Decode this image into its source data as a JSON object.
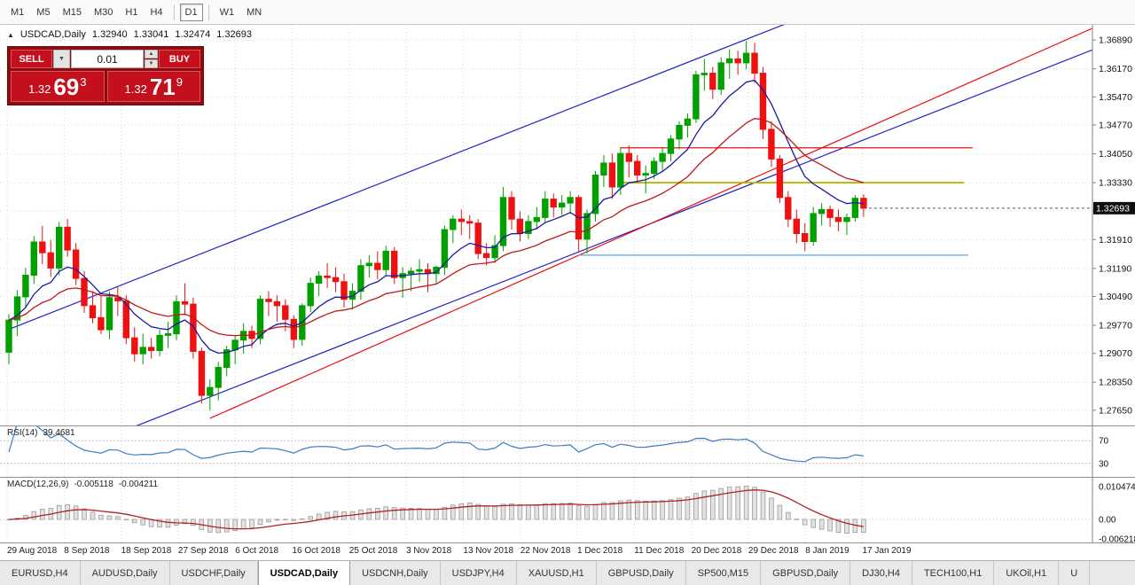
{
  "toolbar": {
    "timeframes": [
      "M1",
      "M5",
      "M15",
      "M30",
      "H1",
      "H4",
      "D1",
      "W1",
      "MN"
    ],
    "active": "D1"
  },
  "chart_header": {
    "symbol": "USDCAD,Daily",
    "open": "1.32940",
    "high": "1.33041",
    "low": "1.32474",
    "close": "1.32693"
  },
  "trade_panel": {
    "sell_label": "SELL",
    "buy_label": "BUY",
    "volume": "0.01",
    "bid": {
      "small": "1.32",
      "big": "69",
      "sup": "3"
    },
    "ask": {
      "small": "1.32",
      "big": "71",
      "sup": "9"
    }
  },
  "price_badge": "1.32693",
  "axes": {
    "price_labels": [
      "1.36890",
      "1.36170",
      "1.35470",
      "1.34770",
      "1.34050",
      "1.33330",
      "1.32630",
      "1.31910",
      "1.31190",
      "1.30490",
      "1.29770",
      "1.29070",
      "1.28350",
      "1.27650"
    ],
    "date_labels": [
      "29 Aug 2018",
      "8 Sep 2018",
      "18 Sep 2018",
      "27 Sep 2018",
      "6 Oct 2018",
      "16 Oct 2018",
      "25 Oct 2018",
      "3 Nov 2018",
      "13 Nov 2018",
      "22 Nov 2018",
      "1 Dec 2018",
      "11 Dec 2018",
      "20 Dec 2018",
      "29 Dec 2018",
      "8 Jan 2019",
      "17 Jan 2019"
    ]
  },
  "rsi": {
    "label": "RSI(14)",
    "value": "39.4681",
    "levels": [
      {
        "value": 70,
        "label": "70"
      },
      {
        "value": 30,
        "label": "30"
      }
    ]
  },
  "macd": {
    "label": "MACD(12,26,9)",
    "value1": "-0.005118",
    "value2": "-0.004211",
    "axis": [
      {
        "value": 0.010474,
        "label": "0.010474"
      },
      {
        "value": 0,
        "label": "0.00"
      },
      {
        "value": -0.006218,
        "label": "-0.006218"
      }
    ]
  },
  "tabs": {
    "items": [
      "EURUSD,H4",
      "AUDUSD,Daily",
      "USDCHF,Daily",
      "USDCAD,Daily",
      "USDCNH,Daily",
      "USDJPY,H4",
      "XAUUSD,H1",
      "GBPUSD,Daily",
      "SP500,M15",
      "GBPUSD,Daily",
      "DJ30,H4",
      "TECH100,H1",
      "UKOil,H1",
      "U"
    ],
    "active_index": 3
  },
  "colors": {
    "up": "#00a000",
    "down": "#ee1111",
    "grid": "#d9d9d9",
    "axis_line": "#808080",
    "panel_sep": "#909090",
    "rsi_line": "#3b7dc4",
    "macd_hist_fill": "#e2e2e2",
    "macd_hist_stroke": "#9a9a9a",
    "macd_signal": "#b22222",
    "badge_bg": "#101010",
    "badge_text": "#ffffff"
  },
  "chart_data": {
    "type": "candlestick",
    "symbol": "USDCAD",
    "timeframe": "Daily",
    "price_axis": {
      "min": 1.2736,
      "max": 1.3718
    },
    "moving_averages": [
      {
        "period": 9,
        "method": "ema",
        "color": "#1a1a9c"
      },
      {
        "period": 21,
        "method": "ema",
        "color": "#c01818"
      }
    ],
    "trendlines": [
      {
        "name": "ascending-channel-upper",
        "i1": 0,
        "p1": 1.2967,
        "i2": 130,
        "p2": 1.4036,
        "color": "#2020cc",
        "w": 1.2
      },
      {
        "name": "ascending-channel-lower",
        "i1": 0,
        "p1": 1.2601,
        "i2": 130,
        "p2": 1.367,
        "color": "#2020cc",
        "w": 1.2
      },
      {
        "name": "ascending-trendline",
        "i1": 24,
        "p1": 1.2745,
        "i2": 129.5,
        "p2": 1.372,
        "color": "#e81010",
        "w": 1.2
      }
    ],
    "hlines": [
      {
        "name": "resistance-line",
        "price": 1.342,
        "i1": 73,
        "i2": 115,
        "color": "#e81010",
        "w": 1.3
      },
      {
        "name": "pivot-line",
        "price": 1.3333,
        "i1": 73,
        "i2": 114,
        "color": "#b6b800",
        "w": 1.8
      },
      {
        "name": "support-line",
        "price": 1.3152,
        "i1": 68,
        "i2": 114.5,
        "color": "#55a8f0",
        "w": 1.3
      }
    ],
    "indicators": {
      "rsi_period": 14,
      "macd_params": [
        12,
        26,
        9
      ]
    },
    "ohlc": [
      [
        1.291,
        1.3005,
        1.288,
        1.299
      ],
      [
        1.299,
        1.3065,
        1.295,
        1.3048
      ],
      [
        1.3048,
        1.312,
        1.302,
        1.3102
      ],
      [
        1.3102,
        1.32,
        1.308,
        1.3185
      ],
      [
        1.3185,
        1.3225,
        1.313,
        1.3158
      ],
      [
        1.3158,
        1.319,
        1.3098,
        1.312
      ],
      [
        1.312,
        1.3235,
        1.3102,
        1.3222
      ],
      [
        1.3222,
        1.3242,
        1.3148,
        1.3165
      ],
      [
        1.3165,
        1.3182,
        1.3078,
        1.3094
      ],
      [
        1.3094,
        1.3112,
        1.3008,
        1.3026
      ],
      [
        1.3026,
        1.3062,
        1.2982,
        1.2996
      ],
      [
        1.2996,
        1.3052,
        1.2955,
        1.2966
      ],
      [
        1.2966,
        1.3062,
        1.2942,
        1.3046
      ],
      [
        1.3046,
        1.3072,
        1.3,
        1.3038
      ],
      [
        1.3038,
        1.3052,
        1.293,
        1.2946
      ],
      [
        1.2946,
        1.2972,
        1.2886,
        1.2906
      ],
      [
        1.2906,
        1.2956,
        1.288,
        1.2922
      ],
      [
        1.2922,
        1.2946,
        1.2894,
        1.2914
      ],
      [
        1.2914,
        1.2966,
        1.29,
        1.2952
      ],
      [
        1.2952,
        1.2986,
        1.292,
        1.2956
      ],
      [
        1.2956,
        1.3052,
        1.294,
        1.3036
      ],
      [
        1.3036,
        1.3082,
        1.3002,
        1.303
      ],
      [
        1.303,
        1.3046,
        1.2894,
        1.2912
      ],
      [
        1.2912,
        1.2922,
        1.2782,
        1.2802
      ],
      [
        1.2802,
        1.2842,
        1.2765,
        1.2822
      ],
      [
        1.2822,
        1.2886,
        1.279,
        1.2872
      ],
      [
        1.2872,
        1.2926,
        1.285,
        1.2916
      ],
      [
        1.2916,
        1.2952,
        1.288,
        1.294
      ],
      [
        1.294,
        1.2982,
        1.2906,
        1.2962
      ],
      [
        1.2962,
        1.2976,
        1.292,
        1.2944
      ],
      [
        1.2944,
        1.3052,
        1.293,
        1.3042
      ],
      [
        1.3042,
        1.3062,
        1.3,
        1.3036
      ],
      [
        1.3036,
        1.3052,
        1.2986,
        1.3026
      ],
      [
        1.3026,
        1.3042,
        1.2962,
        1.2992
      ],
      [
        1.2992,
        1.3002,
        1.292,
        1.2942
      ],
      [
        1.2942,
        1.3032,
        1.2926,
        1.3026
      ],
      [
        1.3026,
        1.3096,
        1.301,
        1.3082
      ],
      [
        1.3082,
        1.3112,
        1.305,
        1.31
      ],
      [
        1.31,
        1.3132,
        1.307,
        1.3096
      ],
      [
        1.3096,
        1.3122,
        1.306,
        1.3086
      ],
      [
        1.3086,
        1.3106,
        1.3022,
        1.3042
      ],
      [
        1.3042,
        1.3082,
        1.3016,
        1.3062
      ],
      [
        1.3062,
        1.3142,
        1.304,
        1.3126
      ],
      [
        1.3126,
        1.3152,
        1.3096,
        1.3132
      ],
      [
        1.3132,
        1.3162,
        1.3092,
        1.3116
      ],
      [
        1.3116,
        1.3176,
        1.31,
        1.3162
      ],
      [
        1.3162,
        1.3172,
        1.308,
        1.3096
      ],
      [
        1.3096,
        1.3122,
        1.3046,
        1.3106
      ],
      [
        1.3106,
        1.3122,
        1.3062,
        1.3112
      ],
      [
        1.3112,
        1.3142,
        1.3086,
        1.3116
      ],
      [
        1.3116,
        1.3132,
        1.306,
        1.3106
      ],
      [
        1.3106,
        1.3126,
        1.308,
        1.3122
      ],
      [
        1.3122,
        1.3226,
        1.3102,
        1.3216
      ],
      [
        1.3216,
        1.3252,
        1.3182,
        1.3242
      ],
      [
        1.3242,
        1.3266,
        1.3202,
        1.3236
      ],
      [
        1.3236,
        1.3252,
        1.3192,
        1.3232
      ],
      [
        1.3232,
        1.3242,
        1.3142,
        1.3156
      ],
      [
        1.3156,
        1.3182,
        1.3126,
        1.3146
      ],
      [
        1.3146,
        1.3202,
        1.3132,
        1.3176
      ],
      [
        1.3176,
        1.3322,
        1.3162,
        1.3296
      ],
      [
        1.3296,
        1.3312,
        1.3216,
        1.3242
      ],
      [
        1.3242,
        1.3262,
        1.3186,
        1.3206
      ],
      [
        1.3206,
        1.3252,
        1.3192,
        1.3236
      ],
      [
        1.3236,
        1.3272,
        1.3216,
        1.3246
      ],
      [
        1.3246,
        1.3312,
        1.3232,
        1.3292
      ],
      [
        1.3292,
        1.3306,
        1.3246,
        1.3272
      ],
      [
        1.3272,
        1.3302,
        1.3252,
        1.3282
      ],
      [
        1.3282,
        1.3312,
        1.3256,
        1.3296
      ],
      [
        1.3296,
        1.3302,
        1.3162,
        1.3192
      ],
      [
        1.3192,
        1.3266,
        1.3156,
        1.3256
      ],
      [
        1.3256,
        1.3362,
        1.3236,
        1.3352
      ],
      [
        1.3352,
        1.3402,
        1.3322,
        1.3382
      ],
      [
        1.3382,
        1.3406,
        1.3292,
        1.3322
      ],
      [
        1.3322,
        1.3422,
        1.3302,
        1.3406
      ],
      [
        1.3406,
        1.3426,
        1.3346,
        1.3386
      ],
      [
        1.3386,
        1.3402,
        1.3332,
        1.3352
      ],
      [
        1.3352,
        1.3376,
        1.3306,
        1.3356
      ],
      [
        1.3356,
        1.3396,
        1.3342,
        1.3386
      ],
      [
        1.3386,
        1.3422,
        1.3362,
        1.3406
      ],
      [
        1.3406,
        1.3452,
        1.3386,
        1.3442
      ],
      [
        1.3442,
        1.3486,
        1.3416,
        1.3476
      ],
      [
        1.3476,
        1.3506,
        1.3446,
        1.3492
      ],
      [
        1.3492,
        1.3612,
        1.3482,
        1.3602
      ],
      [
        1.3602,
        1.3642,
        1.3562,
        1.3606
      ],
      [
        1.3606,
        1.3622,
        1.3542,
        1.3566
      ],
      [
        1.3566,
        1.3646,
        1.3552,
        1.3632
      ],
      [
        1.3632,
        1.3666,
        1.3592,
        1.3642
      ],
      [
        1.3642,
        1.3662,
        1.3602,
        1.3632
      ],
      [
        1.3632,
        1.3686,
        1.3616,
        1.3656
      ],
      [
        1.3656,
        1.3682,
        1.3582,
        1.3606
      ],
      [
        1.3606,
        1.3622,
        1.3442,
        1.3466
      ],
      [
        1.3466,
        1.3486,
        1.3372,
        1.3392
      ],
      [
        1.3392,
        1.3402,
        1.3282,
        1.3296
      ],
      [
        1.3296,
        1.3312,
        1.3222,
        1.3242
      ],
      [
        1.3242,
        1.3266,
        1.3182,
        1.3206
      ],
      [
        1.3206,
        1.3232,
        1.3162,
        1.3186
      ],
      [
        1.3186,
        1.3272,
        1.3176,
        1.3256
      ],
      [
        1.3256,
        1.3282,
        1.3226,
        1.3266
      ],
      [
        1.3266,
        1.3276,
        1.3222,
        1.3246
      ],
      [
        1.3246,
        1.3266,
        1.3212,
        1.3236
      ],
      [
        1.3236,
        1.3256,
        1.3202,
        1.3246
      ],
      [
        1.3246,
        1.3302,
        1.3236,
        1.3294
      ],
      [
        1.3294,
        1.33041,
        1.32474,
        1.32693
      ]
    ]
  }
}
